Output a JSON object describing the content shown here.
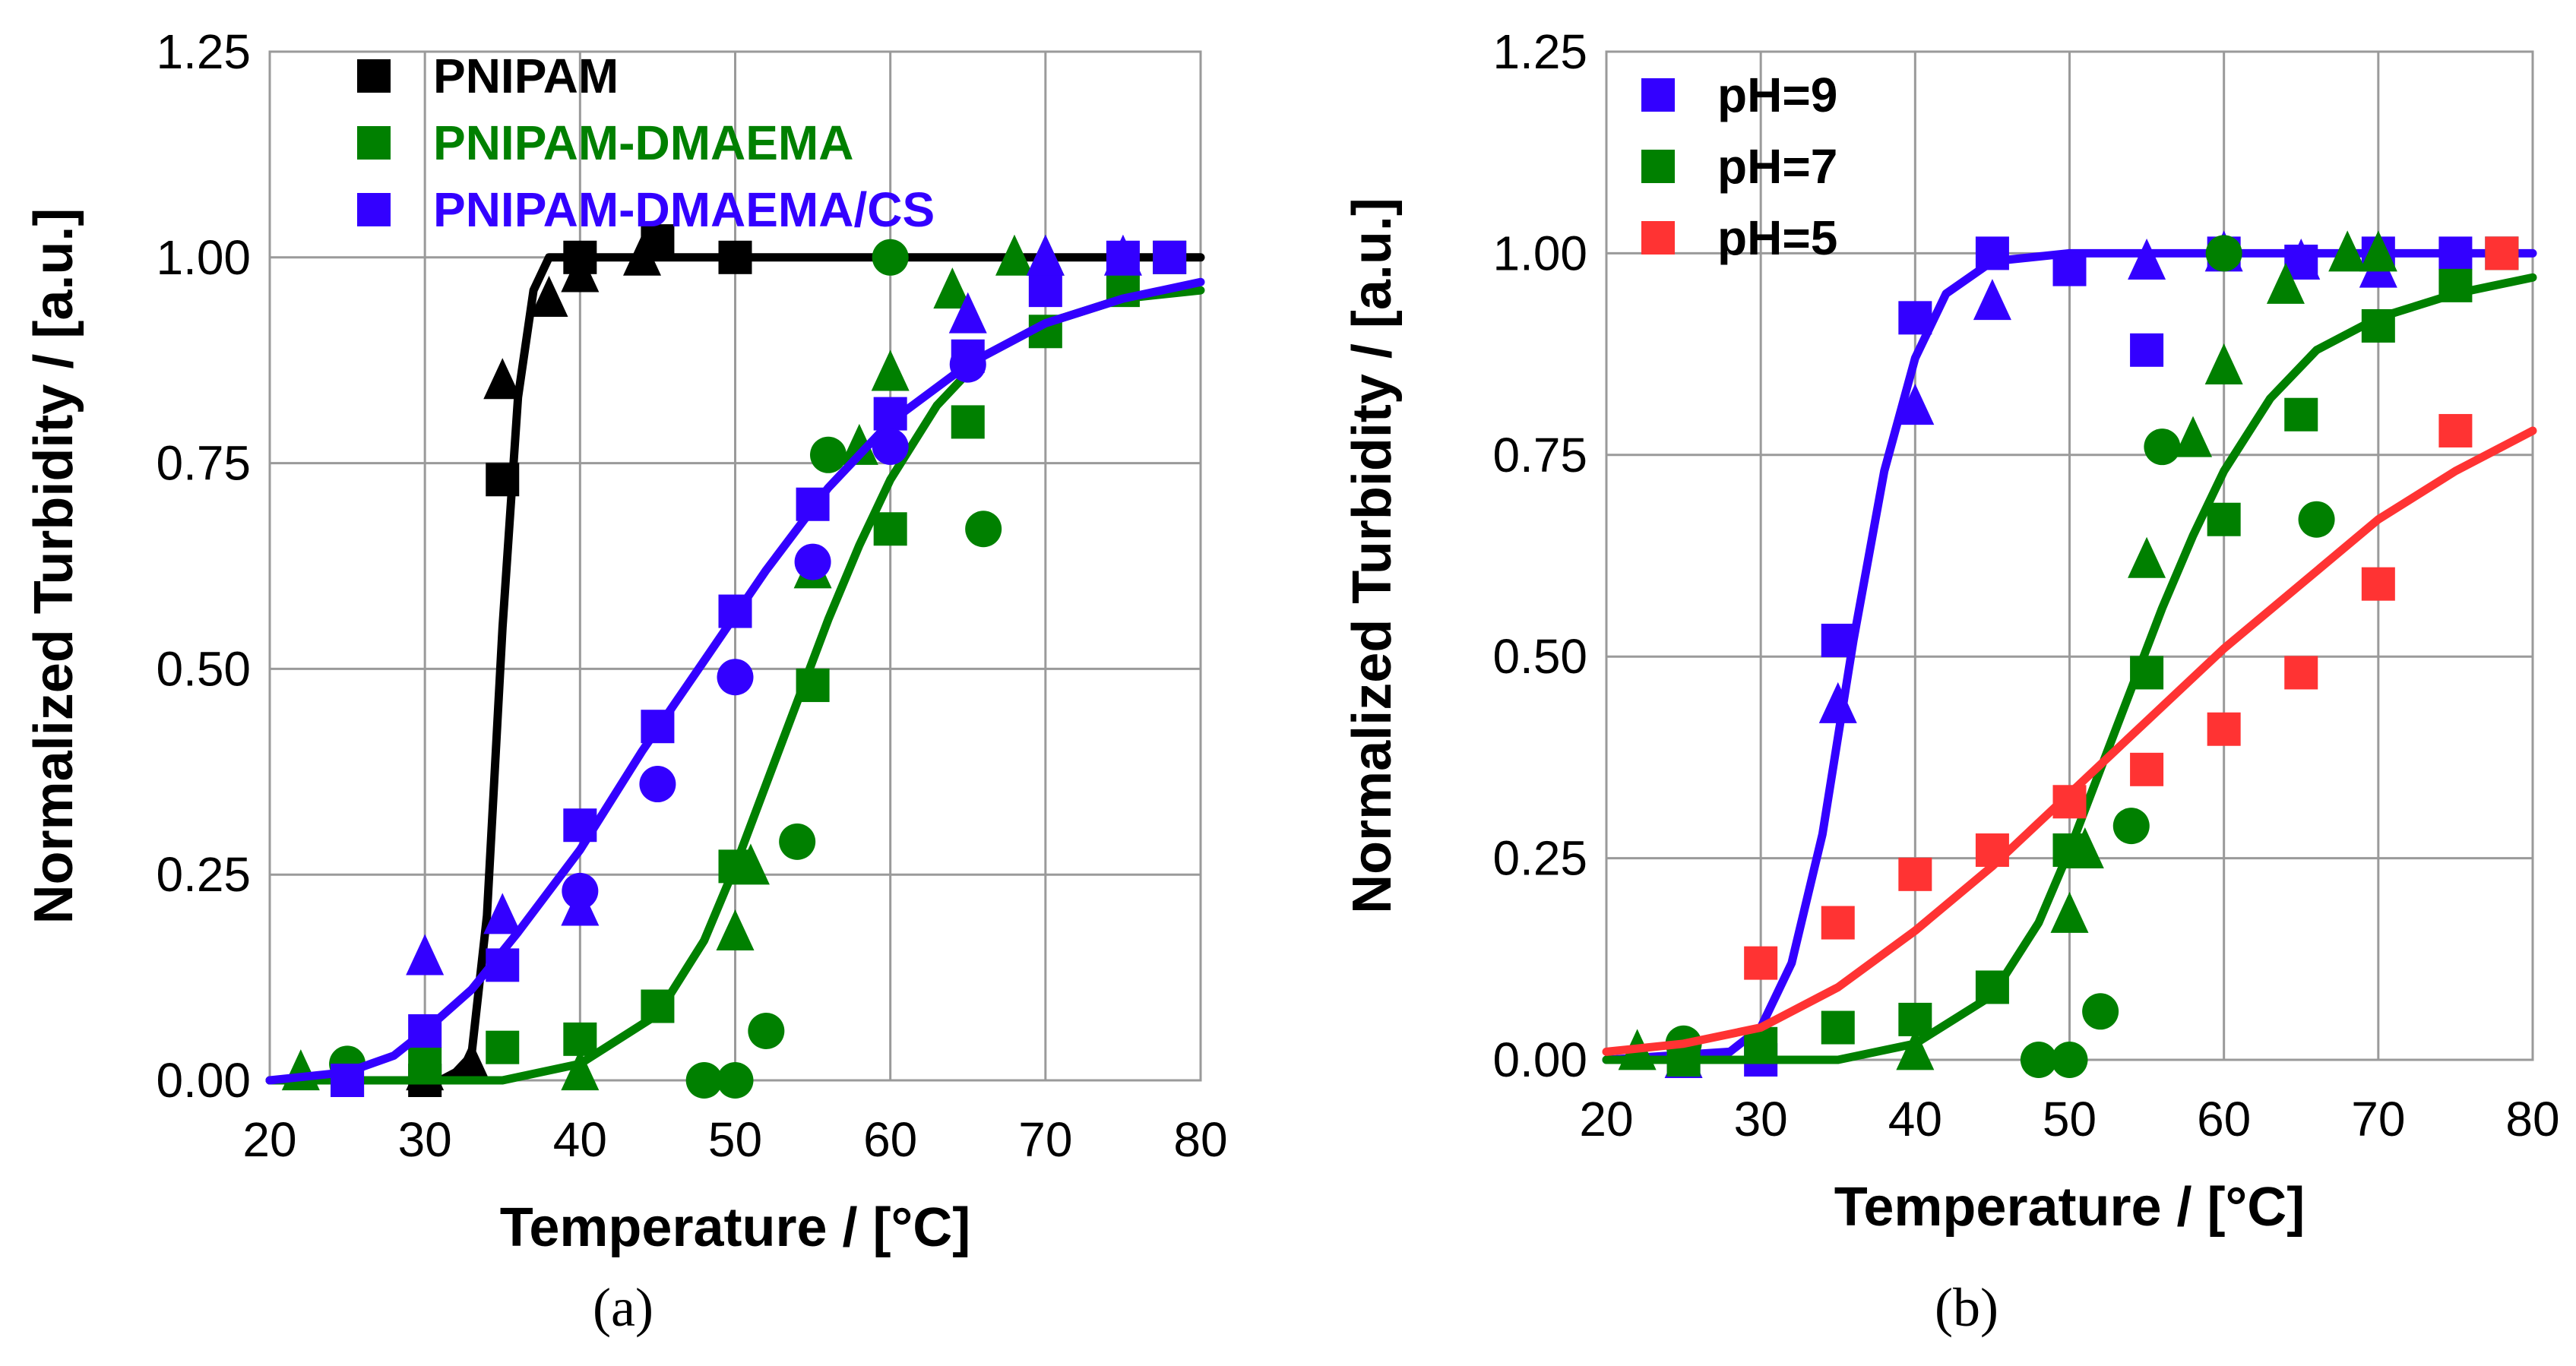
{
  "chart_data": [
    {
      "type": "scatter",
      "panel_label": "(a)",
      "xlabel": "Temperature / [°C]",
      "ylabel": "Normalized Turbidity / [a.u.]",
      "xlim": [
        20,
        80
      ],
      "ylim": [
        0,
        1.25
      ],
      "xticks": [
        "20",
        "30",
        "40",
        "50",
        "60",
        "70",
        "80"
      ],
      "yticks": [
        "0.00",
        "0.25",
        "0.50",
        "0.75",
        "1.00",
        "1.25"
      ],
      "legend_position": "top-left",
      "series": [
        {
          "name": "PNIPAM",
          "color": "#000000",
          "squares": [
            [
              30,
              0
            ],
            [
              35,
              0.73
            ],
            [
              40,
              1.0
            ],
            [
              45,
              1.02
            ],
            [
              50,
              1.0
            ]
          ],
          "triangles": [
            [
              30,
              0.01
            ],
            [
              33,
              0.02
            ],
            [
              35,
              0.85
            ],
            [
              38,
              0.95
            ],
            [
              40,
              0.98
            ],
            [
              44,
              1.0
            ]
          ],
          "curve": [
            [
              20,
              0
            ],
            [
              31,
              0
            ],
            [
              32,
              0.01
            ],
            [
              33,
              0.03
            ],
            [
              34,
              0.2
            ],
            [
              35,
              0.55
            ],
            [
              36,
              0.83
            ],
            [
              37,
              0.96
            ],
            [
              38,
              1.0
            ],
            [
              40,
              1.0
            ],
            [
              80,
              1.0
            ]
          ]
        },
        {
          "name": "PNIPAM-DMAEMA",
          "color": "#008000",
          "squares": [
            [
              25,
              0
            ],
            [
              30,
              0.02
            ],
            [
              35,
              0.04
            ],
            [
              40,
              0.05
            ],
            [
              45,
              0.09
            ],
            [
              50,
              0.26
            ],
            [
              55,
              0.48
            ],
            [
              60,
              0.67
            ],
            [
              65,
              0.8
            ],
            [
              70,
              0.91
            ],
            [
              75,
              0.96
            ],
            [
              78,
              1.0
            ]
          ],
          "triangles": [
            [
              22,
              0.01
            ],
            [
              40,
              0.01
            ],
            [
              50,
              0.18
            ],
            [
              51,
              0.26
            ],
            [
              55,
              0.62
            ],
            [
              58,
              0.77
            ],
            [
              60,
              0.86
            ],
            [
              64,
              0.96
            ],
            [
              68,
              1.0
            ],
            [
              70,
              1.0
            ]
          ],
          "circles": [
            [
              25,
              0.02
            ],
            [
              48,
              0
            ],
            [
              50,
              0
            ],
            [
              52,
              0.06
            ],
            [
              54,
              0.29
            ],
            [
              56,
              0.76
            ],
            [
              60,
              1.0
            ],
            [
              66,
              0.67
            ]
          ],
          "curve": [
            [
              20,
              0
            ],
            [
              35,
              0
            ],
            [
              40,
              0.02
            ],
            [
              45,
              0.08
            ],
            [
              48,
              0.17
            ],
            [
              50,
              0.26
            ],
            [
              52,
              0.36
            ],
            [
              54,
              0.46
            ],
            [
              56,
              0.56
            ],
            [
              58,
              0.65
            ],
            [
              60,
              0.73
            ],
            [
              63,
              0.82
            ],
            [
              66,
              0.88
            ],
            [
              70,
              0.92
            ],
            [
              75,
              0.95
            ],
            [
              80,
              0.96
            ]
          ]
        },
        {
          "name": "PNIPAM-DMAEMA/CS",
          "color": "#3300ff",
          "squares": [
            [
              25,
              0
            ],
            [
              30,
              0.06
            ],
            [
              35,
              0.14
            ],
            [
              40,
              0.31
            ],
            [
              45,
              0.43
            ],
            [
              50,
              0.57
            ],
            [
              55,
              0.7
            ],
            [
              60,
              0.81
            ],
            [
              65,
              0.88
            ],
            [
              70,
              0.96
            ],
            [
              75,
              1.0
            ],
            [
              78,
              1.0
            ]
          ],
          "triangles": [
            [
              30,
              0.15
            ],
            [
              35,
              0.2
            ],
            [
              40,
              0.21
            ],
            [
              65,
              0.93
            ],
            [
              70,
              1.0
            ],
            [
              75,
              1.0
            ]
          ],
          "circles": [
            [
              40,
              0.23
            ],
            [
              45,
              0.36
            ],
            [
              50,
              0.49
            ],
            [
              55,
              0.63
            ],
            [
              60,
              0.77
            ],
            [
              65,
              0.87
            ]
          ],
          "curve": [
            [
              20,
              0
            ],
            [
              25,
              0.01
            ],
            [
              28,
              0.03
            ],
            [
              30,
              0.06
            ],
            [
              33,
              0.11
            ],
            [
              36,
              0.18
            ],
            [
              40,
              0.28
            ],
            [
              44,
              0.4
            ],
            [
              48,
              0.51
            ],
            [
              52,
              0.62
            ],
            [
              56,
              0.72
            ],
            [
              60,
              0.8
            ],
            [
              65,
              0.87
            ],
            [
              70,
              0.92
            ],
            [
              75,
              0.95
            ],
            [
              80,
              0.97
            ]
          ]
        }
      ]
    },
    {
      "type": "scatter",
      "panel_label": "(b)",
      "xlabel": "Temperature / [°C]",
      "ylabel": "Normalized Turbidity / [a.u.]",
      "xlim": [
        20,
        80
      ],
      "ylim": [
        0,
        1.25
      ],
      "xticks": [
        "20",
        "30",
        "40",
        "50",
        "60",
        "70",
        "80"
      ],
      "yticks": [
        "0.00",
        "0.25",
        "0.50",
        "0.75",
        "1.00",
        "1.25"
      ],
      "legend_position": "top-left",
      "series": [
        {
          "name": "pH=9",
          "color": "#3300ff",
          "squares": [
            [
              25,
              0
            ],
            [
              30,
              0
            ],
            [
              35,
              0.52
            ],
            [
              40,
              0.92
            ],
            [
              45,
              1.0
            ],
            [
              50,
              0.98
            ],
            [
              55,
              0.88
            ],
            [
              60,
              1.0
            ],
            [
              65,
              0.99
            ],
            [
              70,
              1.0
            ],
            [
              75,
              1.0
            ],
            [
              78,
              1.0
            ]
          ],
          "triangles": [
            [
              25,
              0
            ],
            [
              35,
              0.44
            ],
            [
              40,
              0.81
            ],
            [
              45,
              0.94
            ],
            [
              55,
              0.99
            ],
            [
              60,
              1.0
            ],
            [
              65,
              0.99
            ],
            [
              70,
              0.98
            ]
          ],
          "curve": [
            [
              20,
              0
            ],
            [
              28,
              0.01
            ],
            [
              30,
              0.04
            ],
            [
              32,
              0.12
            ],
            [
              34,
              0.28
            ],
            [
              36,
              0.52
            ],
            [
              38,
              0.73
            ],
            [
              40,
              0.87
            ],
            [
              42,
              0.95
            ],
            [
              45,
              0.99
            ],
            [
              50,
              1.0
            ],
            [
              80,
              1.0
            ]
          ]
        },
        {
          "name": "pH=7",
          "color": "#008000",
          "squares": [
            [
              25,
              0
            ],
            [
              30,
              0.02
            ],
            [
              35,
              0.04
            ],
            [
              40,
              0.05
            ],
            [
              45,
              0.09
            ],
            [
              50,
              0.26
            ],
            [
              55,
              0.48
            ],
            [
              60,
              0.67
            ],
            [
              65,
              0.8
            ],
            [
              70,
              0.91
            ],
            [
              75,
              0.96
            ],
            [
              78,
              1.0
            ]
          ],
          "triangles": [
            [
              22,
              0.01
            ],
            [
              40,
              0.01
            ],
            [
              50,
              0.18
            ],
            [
              51,
              0.26
            ],
            [
              55,
              0.62
            ],
            [
              58,
              0.77
            ],
            [
              60,
              0.86
            ],
            [
              64,
              0.96
            ],
            [
              68,
              1.0
            ],
            [
              70,
              1.0
            ]
          ],
          "circles": [
            [
              25,
              0.02
            ],
            [
              48,
              0
            ],
            [
              50,
              0
            ],
            [
              52,
              0.06
            ],
            [
              54,
              0.29
            ],
            [
              56,
              0.76
            ],
            [
              60,
              1.0
            ],
            [
              66,
              0.67
            ]
          ],
          "curve": [
            [
              20,
              0
            ],
            [
              35,
              0
            ],
            [
              40,
              0.02
            ],
            [
              45,
              0.08
            ],
            [
              48,
              0.17
            ],
            [
              50,
              0.26
            ],
            [
              52,
              0.36
            ],
            [
              54,
              0.46
            ],
            [
              56,
              0.56
            ],
            [
              58,
              0.65
            ],
            [
              60,
              0.73
            ],
            [
              63,
              0.82
            ],
            [
              66,
              0.88
            ],
            [
              70,
              0.92
            ],
            [
              75,
              0.95
            ],
            [
              80,
              0.97
            ]
          ]
        },
        {
          "name": "pH=5",
          "color": "#ff3333",
          "squares": [
            [
              30,
              0.12
            ],
            [
              35,
              0.17
            ],
            [
              40,
              0.23
            ],
            [
              45,
              0.26
            ],
            [
              50,
              0.32
            ],
            [
              55,
              0.36
            ],
            [
              60,
              0.41
            ],
            [
              65,
              0.48
            ],
            [
              70,
              0.59
            ],
            [
              75,
              0.78
            ],
            [
              78,
              1.0
            ]
          ],
          "curve": [
            [
              20,
              0.01
            ],
            [
              25,
              0.02
            ],
            [
              30,
              0.04
            ],
            [
              35,
              0.09
            ],
            [
              40,
              0.16
            ],
            [
              45,
              0.24
            ],
            [
              50,
              0.33
            ],
            [
              55,
              0.42
            ],
            [
              60,
              0.51
            ],
            [
              65,
              0.59
            ],
            [
              70,
              0.67
            ],
            [
              75,
              0.73
            ],
            [
              80,
              0.78
            ]
          ]
        }
      ]
    }
  ]
}
